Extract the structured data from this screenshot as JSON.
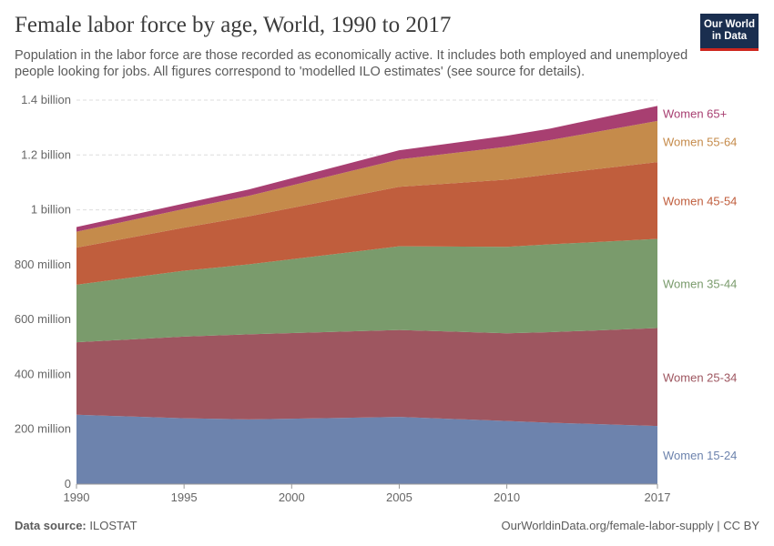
{
  "title": "Female labor force by age, World, 1990 to 2017",
  "subtitle": "Population in the labor force are those recorded as economically active. It includes both employed and unemployed people looking for jobs. All figures correspond to 'modelled ILO estimates' (see source for details).",
  "logo": {
    "line1": "Our World",
    "line2": "in Data"
  },
  "footer": {
    "source_label": "Data source:",
    "source_value": "ILOSTAT",
    "url_license": "OurWorldinData.org/female-labor-supply | CC BY"
  },
  "chart_data": {
    "type": "area",
    "stacked": true,
    "x": [
      1990,
      1995,
      1998,
      2005,
      2010,
      2012,
      2017
    ],
    "xticks": [
      1990,
      1995,
      2000,
      2005,
      2010,
      2017
    ],
    "xtick_labels": [
      "1990",
      "1995",
      "2000",
      "2005",
      "2010",
      "2017"
    ],
    "xlim": [
      1990,
      2017
    ],
    "ylim": [
      0,
      1400000000
    ],
    "yticks": [
      0,
      200000000,
      400000000,
      600000000,
      800000000,
      1000000000,
      1200000000,
      1400000000
    ],
    "ytick_labels": [
      "0",
      "200 million",
      "400 million",
      "600 million",
      "800 million",
      "1 billion",
      "1.2 billion",
      "1.4 billion"
    ],
    "grid": "horizontal dashed",
    "legend": "right, labels at series ends",
    "series": [
      {
        "name": "Women 15-24",
        "color": "#6d83ad",
        "values": [
          253000000,
          240000000,
          236000000,
          245000000,
          230000000,
          224000000,
          212000000
        ]
      },
      {
        "name": "Women 25-34",
        "color": "#9e5660",
        "values": [
          264000000,
          298000000,
          310000000,
          317000000,
          320000000,
          330000000,
          357000000
        ]
      },
      {
        "name": "Women 35-44",
        "color": "#7a9b6c",
        "values": [
          210000000,
          240000000,
          255000000,
          305000000,
          315000000,
          320000000,
          325000000
        ]
      },
      {
        "name": "Women 45-54",
        "color": "#c05e3d",
        "values": [
          135000000,
          157000000,
          175000000,
          217000000,
          245000000,
          255000000,
          280000000
        ]
      },
      {
        "name": "Women 55-64",
        "color": "#c58b4b",
        "values": [
          58000000,
          68000000,
          75000000,
          100000000,
          120000000,
          125000000,
          150000000
        ]
      },
      {
        "name": "Women 65+",
        "color": "#a83f71",
        "values": [
          17000000,
          20000000,
          23000000,
          33000000,
          40000000,
          42000000,
          55000000
        ]
      }
    ]
  }
}
